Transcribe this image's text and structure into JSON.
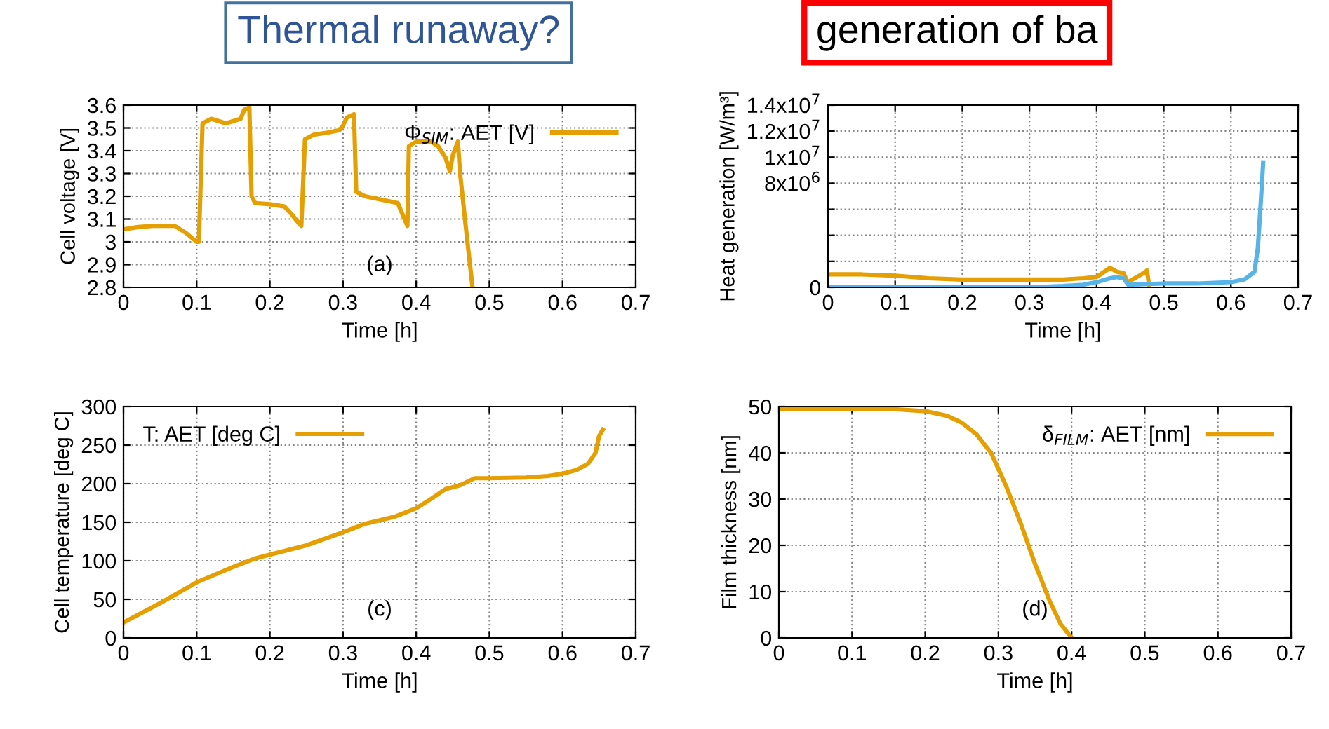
{
  "chart_data": [
    {
      "type": "line",
      "xlabel": "Time [h]",
      "ylabel": "Cell voltage [V]",
      "xlim": [
        0,
        0.7
      ],
      "ylim": [
        2.8,
        3.6
      ],
      "xticks": [
        0,
        0.1,
        0.2,
        0.3,
        0.4,
        0.5,
        0.6,
        0.7
      ],
      "yticks": [
        2.8,
        2.9,
        3,
        3.1,
        3.2,
        3.3,
        3.4,
        3.5,
        3.6
      ],
      "grid": true,
      "legend": "top right",
      "annotations": [
        "(a)"
      ],
      "series": [
        {
          "name": "Φ$_{SIM}$: AET [V]",
          "color": "#e69f00",
          "x": [
            0,
            0.02,
            0.04,
            0.07,
            0.085,
            0.1,
            0.103,
            0.108,
            0.12,
            0.14,
            0.16,
            0.165,
            0.172,
            0.175,
            0.18,
            0.2,
            0.22,
            0.23,
            0.24,
            0.243,
            0.248,
            0.26,
            0.28,
            0.295,
            0.3,
            0.305,
            0.315,
            0.318,
            0.33,
            0.36,
            0.375,
            0.38,
            0.388,
            0.39,
            0.4,
            0.42,
            0.43,
            0.44,
            0.446,
            0.45,
            0.457,
            0.46,
            0.47,
            0.477
          ],
          "values": [
            3.055,
            3.065,
            3.07,
            3.07,
            3.04,
            3.0,
            3.0,
            3.52,
            3.54,
            3.52,
            3.54,
            3.58,
            3.59,
            3.2,
            3.17,
            3.165,
            3.155,
            3.12,
            3.08,
            3.07,
            3.45,
            3.47,
            3.48,
            3.49,
            3.51,
            3.545,
            3.56,
            3.22,
            3.2,
            3.18,
            3.17,
            3.13,
            3.07,
            3.42,
            3.44,
            3.44,
            3.42,
            3.37,
            3.31,
            3.38,
            3.44,
            3.3,
            3.0,
            2.8
          ]
        }
      ]
    },
    {
      "type": "line",
      "xlabel": "Time [h]",
      "ylabel": "Heat generation [W/m³]",
      "xlim": [
        0,
        0.7
      ],
      "ylim": [
        0,
        14000000
      ],
      "xticks": [
        0,
        0.1,
        0.2,
        0.3,
        0.4,
        0.5,
        0.6,
        0.7
      ],
      "yticks": [
        0,
        {
          "value": 2000000,
          "label": null
        },
        {
          "value": 4000000,
          "label": null
        },
        {
          "value": 6000000,
          "label": null
        },
        {
          "value": 8000000,
          "label": "8x10$^{6}$"
        },
        {
          "value": 10000000,
          "label": "1x10$^{7}$"
        },
        {
          "value": 12000000,
          "label": "1.2x10$^{7}$"
        },
        {
          "value": 14000000,
          "label": "1.4x10$^{7}$"
        }
      ],
      "grid": true,
      "series": [
        {
          "color": "#e69f00",
          "x": [
            0,
            0.05,
            0.1,
            0.15,
            0.2,
            0.25,
            0.3,
            0.35,
            0.38,
            0.4,
            0.42,
            0.43,
            0.44,
            0.447,
            0.45,
            0.47,
            0.475,
            0.478
          ],
          "values": [
            1000000,
            1000000,
            900000,
            700000,
            600000,
            600000,
            600000,
            600000,
            700000,
            800000,
            1500000,
            1200000,
            1100000,
            300000,
            500000,
            1100000,
            1300000,
            200000
          ]
        },
        {
          "color": "#56b4e9",
          "x": [
            0,
            0.3,
            0.35,
            0.38,
            0.4,
            0.42,
            0.43,
            0.44,
            0.447,
            0.5,
            0.55,
            0.6,
            0.62,
            0.635,
            0.64,
            0.645,
            0.648
          ],
          "values": [
            0,
            0,
            100000,
            200000,
            400000,
            700000,
            800000,
            700000,
            200000,
            300000,
            300000,
            400000,
            600000,
            1200000,
            3000000,
            7000000,
            9600000
          ]
        }
      ]
    },
    {
      "type": "line",
      "xlabel": "Time [h]",
      "ylabel": "Cell temperature [deg C]",
      "xlim": [
        0,
        0.7
      ],
      "ylim": [
        0,
        300
      ],
      "xticks": [
        0,
        0.1,
        0.2,
        0.3,
        0.4,
        0.5,
        0.6,
        0.7
      ],
      "yticks": [
        0,
        50,
        100,
        150,
        200,
        250,
        300
      ],
      "grid": true,
      "legend": "top left",
      "annotations": [
        "(c)"
      ],
      "series": [
        {
          "name": "T: AET [deg C]",
          "color": "#e69f00",
          "x": [
            0,
            0.05,
            0.1,
            0.15,
            0.18,
            0.2,
            0.25,
            0.3,
            0.33,
            0.37,
            0.4,
            0.42,
            0.44,
            0.46,
            0.48,
            0.5,
            0.55,
            0.58,
            0.6,
            0.62,
            0.635,
            0.645,
            0.65,
            0.655
          ],
          "values": [
            20,
            45,
            72,
            92,
            103,
            108,
            120,
            137,
            148,
            157,
            168,
            180,
            193,
            198,
            207,
            207,
            208,
            210,
            213,
            218,
            226,
            240,
            262,
            270
          ]
        }
      ]
    },
    {
      "type": "line",
      "xlabel": "Time [h]",
      "ylabel": "Film thickness [nm]",
      "xlim": [
        0,
        0.7
      ],
      "ylim": [
        0,
        50
      ],
      "xticks": [
        0,
        0.1,
        0.2,
        0.3,
        0.4,
        0.5,
        0.6,
        0.7
      ],
      "yticks": [
        0,
        10,
        20,
        30,
        40,
        50
      ],
      "grid": true,
      "legend": "top right",
      "annotations": [
        "(d)"
      ],
      "series": [
        {
          "name": "δ$_{FILM}$: AET [nm]",
          "color": "#e69f00",
          "x": [
            0,
            0.15,
            0.2,
            0.23,
            0.25,
            0.27,
            0.29,
            0.31,
            0.33,
            0.35,
            0.37,
            0.385,
            0.4
          ],
          "values": [
            49.5,
            49.5,
            49,
            48,
            46.5,
            44,
            40,
            33,
            25,
            16,
            8,
            3,
            0
          ]
        }
      ]
    },
    {
      "type": "other",
      "annotations": [
        "Thermal runaway?",
        "generation of ba"
      ]
    }
  ]
}
